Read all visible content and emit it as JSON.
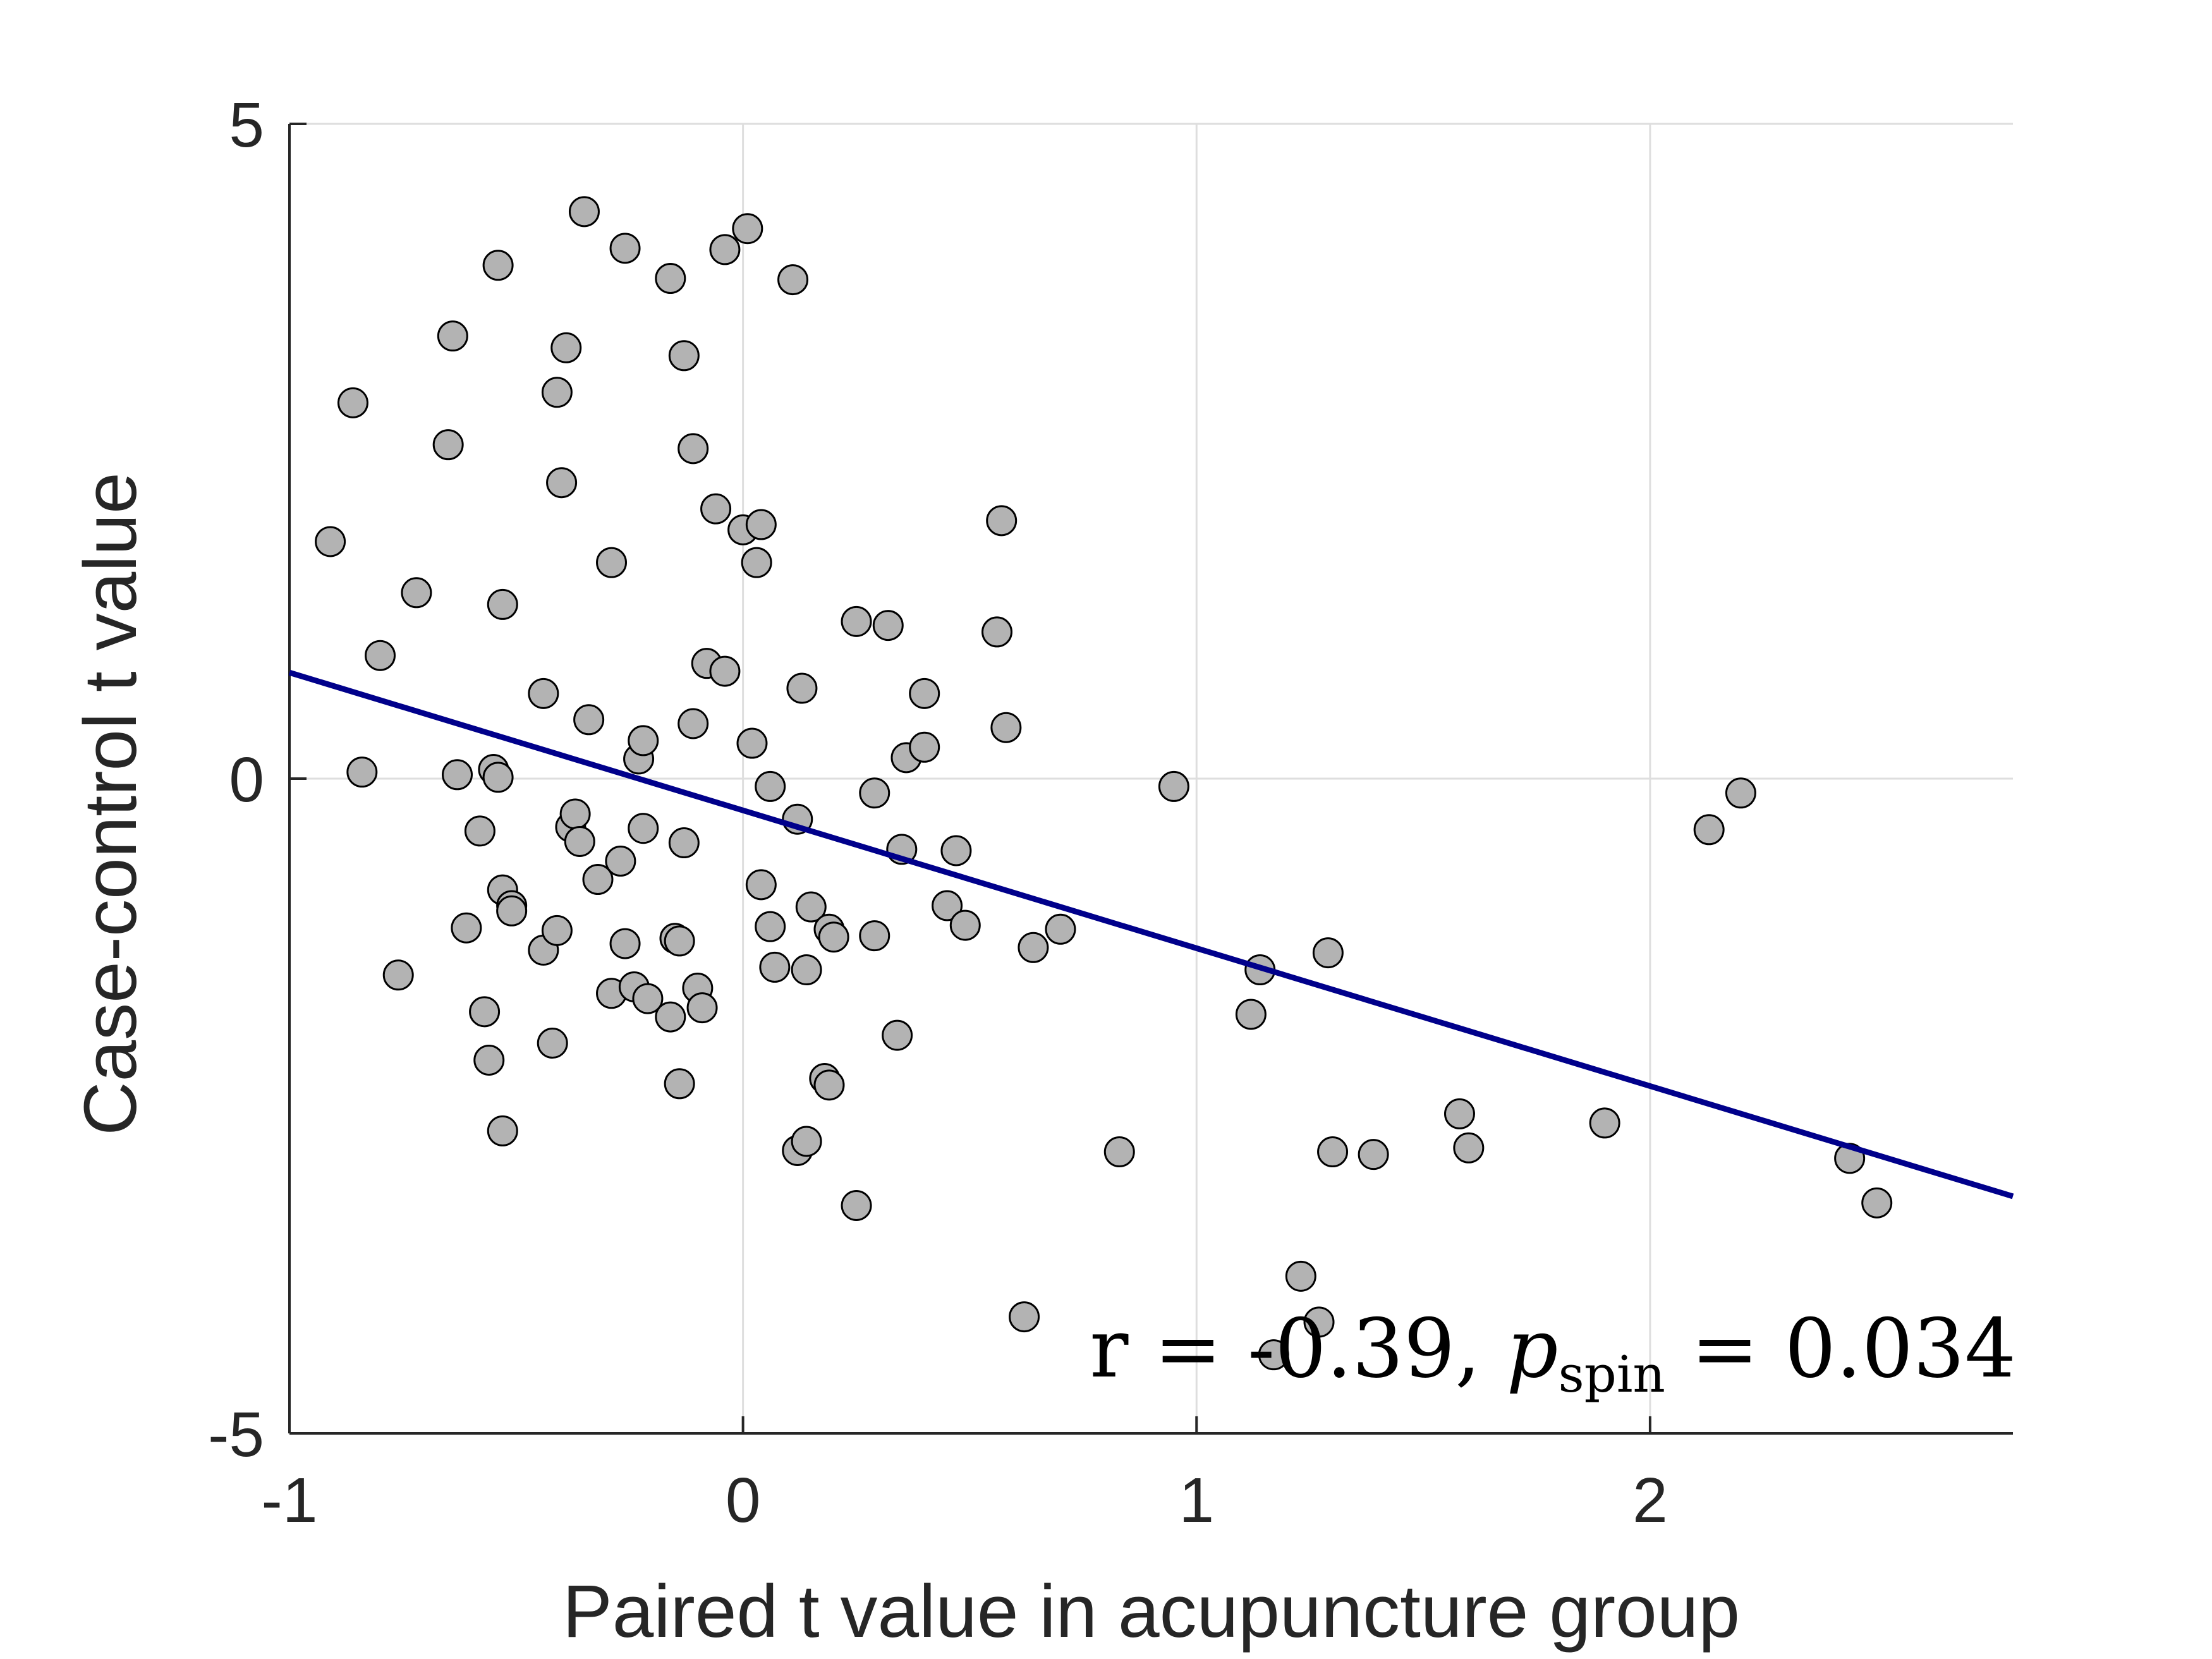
{
  "chart_data": {
    "type": "scatter",
    "title": "",
    "xlabel": "Paired t value in acupuncture group",
    "ylabel": "Case-control t value",
    "xlim": [
      -1,
      2.8
    ],
    "ylim": [
      -5,
      5
    ],
    "x_ticks": [
      -1,
      0,
      1,
      2
    ],
    "y_ticks": [
      -5,
      0,
      5
    ],
    "x_tick_labels": [
      "-1",
      "0",
      "1",
      "2"
    ],
    "y_tick_labels": [
      "-5",
      "0",
      "5"
    ],
    "grid": true,
    "annotation": {
      "prefix": "r = -0.39, ",
      "p_symbol": "p",
      "p_subscript": "spin",
      "suffix": " = 0.034"
    },
    "marker_color": "#b3b3b3",
    "marker_edge_color": "#000000",
    "line_color": "#00008b",
    "fit_line": {
      "x": [
        -1,
        2.8
      ],
      "y": [
        0.81,
        -3.19
      ]
    },
    "points": [
      {
        "x": -0.91,
        "y": 1.81
      },
      {
        "x": -0.86,
        "y": 2.87
      },
      {
        "x": -0.84,
        "y": 0.05
      },
      {
        "x": -0.8,
        "y": 0.94
      },
      {
        "x": -0.76,
        "y": -1.5
      },
      {
        "x": -0.72,
        "y": 1.42
      },
      {
        "x": -0.65,
        "y": 2.55
      },
      {
        "x": -0.64,
        "y": 3.38
      },
      {
        "x": -0.63,
        "y": 0.03
      },
      {
        "x": -0.61,
        "y": -1.14
      },
      {
        "x": -0.58,
        "y": -0.4
      },
      {
        "x": -0.57,
        "y": -1.78
      },
      {
        "x": -0.56,
        "y": -2.15
      },
      {
        "x": -0.55,
        "y": 0.07
      },
      {
        "x": -0.54,
        "y": 0.01
      },
      {
        "x": -0.54,
        "y": 3.92
      },
      {
        "x": -0.53,
        "y": -2.69
      },
      {
        "x": -0.53,
        "y": 1.33
      },
      {
        "x": -0.53,
        "y": -0.85
      },
      {
        "x": -0.51,
        "y": -0.97
      },
      {
        "x": -0.51,
        "y": -1.01
      },
      {
        "x": -0.44,
        "y": 0.65
      },
      {
        "x": -0.44,
        "y": -1.31
      },
      {
        "x": -0.42,
        "y": -2.02
      },
      {
        "x": -0.41,
        "y": -1.16
      },
      {
        "x": -0.41,
        "y": 2.95
      },
      {
        "x": -0.4,
        "y": 2.26
      },
      {
        "x": -0.39,
        "y": 3.29
      },
      {
        "x": -0.38,
        "y": -0.37
      },
      {
        "x": -0.37,
        "y": -0.27
      },
      {
        "x": -0.36,
        "y": -0.48
      },
      {
        "x": -0.35,
        "y": 4.33
      },
      {
        "x": -0.34,
        "y": 0.45
      },
      {
        "x": -0.32,
        "y": -0.77
      },
      {
        "x": -0.29,
        "y": 1.65
      },
      {
        "x": -0.29,
        "y": -1.64
      },
      {
        "x": -0.27,
        "y": -0.63
      },
      {
        "x": -0.26,
        "y": 4.05
      },
      {
        "x": -0.26,
        "y": -1.26
      },
      {
        "x": -0.24,
        "y": -1.59
      },
      {
        "x": -0.23,
        "y": 0.15
      },
      {
        "x": -0.22,
        "y": 0.29
      },
      {
        "x": -0.22,
        "y": -0.38
      },
      {
        "x": -0.21,
        "y": -1.68
      },
      {
        "x": -0.16,
        "y": 3.82
      },
      {
        "x": -0.16,
        "y": -1.82
      },
      {
        "x": -0.15,
        "y": -1.22
      },
      {
        "x": -0.14,
        "y": -1.24
      },
      {
        "x": -0.14,
        "y": -2.33
      },
      {
        "x": -0.13,
        "y": 3.23
      },
      {
        "x": -0.13,
        "y": -0.49
      },
      {
        "x": -0.11,
        "y": 2.52
      },
      {
        "x": -0.11,
        "y": 0.42
      },
      {
        "x": -0.1,
        "y": -1.6
      },
      {
        "x": -0.09,
        "y": -1.75
      },
      {
        "x": -0.08,
        "y": 0.88
      },
      {
        "x": -0.06,
        "y": 2.06
      },
      {
        "x": -0.04,
        "y": 0.82
      },
      {
        "x": -0.04,
        "y": 4.04
      },
      {
        "x": 0.0,
        "y": 1.9
      },
      {
        "x": 0.01,
        "y": 4.2
      },
      {
        "x": 0.02,
        "y": 0.27
      },
      {
        "x": 0.03,
        "y": 1.65
      },
      {
        "x": 0.04,
        "y": 1.94
      },
      {
        "x": 0.04,
        "y": -0.81
      },
      {
        "x": 0.06,
        "y": -0.06
      },
      {
        "x": 0.06,
        "y": -1.13
      },
      {
        "x": 0.07,
        "y": -1.44
      },
      {
        "x": 0.11,
        "y": 3.81
      },
      {
        "x": 0.12,
        "y": -0.31
      },
      {
        "x": 0.12,
        "y": -2.84
      },
      {
        "x": 0.13,
        "y": 0.69
      },
      {
        "x": 0.14,
        "y": -2.77
      },
      {
        "x": 0.14,
        "y": -1.46
      },
      {
        "x": 0.15,
        "y": -0.98
      },
      {
        "x": 0.18,
        "y": -2.29
      },
      {
        "x": 0.19,
        "y": -1.15
      },
      {
        "x": 0.19,
        "y": -2.34
      },
      {
        "x": 0.2,
        "y": -1.21
      },
      {
        "x": 0.25,
        "y": 1.2
      },
      {
        "x": 0.25,
        "y": -3.26
      },
      {
        "x": 0.29,
        "y": -0.11
      },
      {
        "x": 0.29,
        "y": -1.2
      },
      {
        "x": 0.32,
        "y": 1.17
      },
      {
        "x": 0.34,
        "y": -1.96
      },
      {
        "x": 0.35,
        "y": -0.54
      },
      {
        "x": 0.36,
        "y": 0.16
      },
      {
        "x": 0.4,
        "y": 0.65
      },
      {
        "x": 0.4,
        "y": 0.24
      },
      {
        "x": 0.45,
        "y": -0.97
      },
      {
        "x": 0.47,
        "y": -0.55
      },
      {
        "x": 0.49,
        "y": -1.12
      },
      {
        "x": 0.56,
        "y": 1.12
      },
      {
        "x": 0.57,
        "y": 1.97
      },
      {
        "x": 0.58,
        "y": 0.39
      },
      {
        "x": 0.62,
        "y": -4.11
      },
      {
        "x": 0.64,
        "y": -1.29
      },
      {
        "x": 0.7,
        "y": -1.15
      },
      {
        "x": 0.83,
        "y": -2.85
      },
      {
        "x": 0.95,
        "y": -0.06
      },
      {
        "x": 1.12,
        "y": -1.8
      },
      {
        "x": 1.14,
        "y": -1.46
      },
      {
        "x": 1.17,
        "y": -4.4
      },
      {
        "x": 1.23,
        "y": -3.8
      },
      {
        "x": 1.27,
        "y": -4.15
      },
      {
        "x": 1.29,
        "y": -1.33
      },
      {
        "x": 1.3,
        "y": -2.85
      },
      {
        "x": 1.39,
        "y": -2.87
      },
      {
        "x": 1.58,
        "y": -2.56
      },
      {
        "x": 1.6,
        "y": -2.82
      },
      {
        "x": 1.9,
        "y": -2.63
      },
      {
        "x": 2.13,
        "y": -0.39
      },
      {
        "x": 2.2,
        "y": -0.11
      },
      {
        "x": 2.44,
        "y": -2.9
      },
      {
        "x": 2.5,
        "y": -3.24
      }
    ]
  }
}
